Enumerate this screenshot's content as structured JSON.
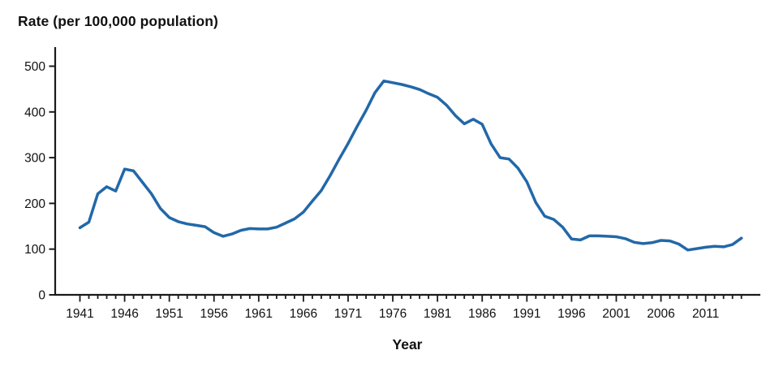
{
  "colors": {
    "line": "#2268A8",
    "axis": "#1a1a1a",
    "text": "#111111",
    "background": "#ffffff"
  },
  "chart_data": {
    "type": "line",
    "title": "Rate (per 100,000 population)",
    "xlabel": "Year",
    "ylabel": "Rate (per 100,000 population)",
    "grid": false,
    "legend": "none",
    "ylim": [
      0,
      500
    ],
    "y_ticks": [
      0,
      100,
      200,
      300,
      400,
      500
    ],
    "x_start": 1941,
    "x_end": 2015,
    "x_ticks_minor_every": 1,
    "x_ticks_labeled": [
      1941,
      1946,
      1951,
      1956,
      1961,
      1966,
      1971,
      1976,
      1981,
      1986,
      1991,
      1996,
      2001,
      2006,
      2011
    ],
    "series": [
      {
        "name": "Rate per 100,000 population",
        "x_first_year": 1941,
        "values": [
          146.7,
          159,
          221,
          236.5,
          227,
          275,
          271,
          246,
          221,
          189,
          169,
          160,
          155,
          152,
          149,
          136,
          128,
          133,
          141,
          145,
          144,
          144,
          148,
          157,
          166,
          181,
          205,
          228,
          261,
          297,
          331,
          368,
          403,
          442,
          467.7,
          464,
          460,
          455,
          449,
          440,
          432,
          415,
          392,
          374,
          384,
          373,
          330,
          300,
          297,
          277,
          247,
          202,
          172,
          165,
          148,
          122,
          120,
          129,
          129,
          128,
          127,
          123,
          115,
          112,
          114,
          119,
          118,
          111,
          98,
          101,
          104,
          106,
          105,
          110,
          124
        ]
      }
    ]
  }
}
